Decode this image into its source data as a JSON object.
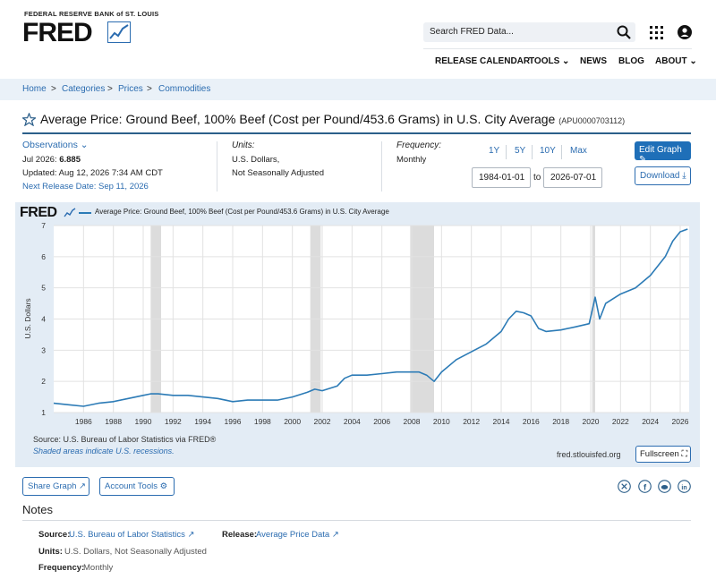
{
  "header": {
    "bank": "FEDERAL RESERVE BANK of ST. LOUIS",
    "logo": "FRED",
    "search_placeholder": "Search FRED Data...",
    "nav": [
      "RELEASE CALENDAR",
      "TOOLS",
      "NEWS",
      "BLOG",
      "ABOUT"
    ]
  },
  "breadcrumb": [
    "Home",
    "Categories",
    "Prices",
    "Commodities"
  ],
  "series": {
    "title": "Average Price: Ground Beef, 100% Beef (Cost per Pound/453.6 Grams) in U.S. City Average",
    "id": "(APU0000703112)",
    "observations_label": "Observations",
    "obs_period": "Jul 2026:",
    "obs_value": "6.885",
    "updated": "Updated: Aug 12, 2026 7:34 AM CDT",
    "next_release": "Next Release Date: Sep 11, 2026",
    "units_label": "Units:",
    "units_line1": "U.S. Dollars,",
    "units_line2": "Not Seasonally Adjusted",
    "frequency_label": "Frequency:",
    "frequency": "Monthly"
  },
  "controls": {
    "ranges": [
      "1Y",
      "5Y",
      "10Y",
      "Max"
    ],
    "start_date": "1984-01-01",
    "to": "to",
    "end_date": "2026-07-01",
    "edit_graph": "Edit Graph",
    "download": "Download"
  },
  "chart_panel": {
    "logo": "FRED",
    "legend": "Average Price: Ground Beef, 100% Beef (Cost per Pound/453.6 Grams) in U.S. City Average",
    "source": "Source: U.S. Bureau of Labor Statistics via FRED®",
    "shaded_note": "Shaded areas indicate U.S. recessions.",
    "url": "fred.stlouisfed.org",
    "fullscreen": "Fullscreen"
  },
  "chart_data": {
    "type": "line",
    "ylabel": "U.S. Dollars",
    "xlim": [
      1984.0,
      2026.6
    ],
    "ylim": [
      1,
      7
    ],
    "x_ticks": [
      "1986",
      "1988",
      "1990",
      "1992",
      "1994",
      "1996",
      "1998",
      "2000",
      "2002",
      "2004",
      "2006",
      "2008",
      "2010",
      "2012",
      "2014",
      "2016",
      "2018",
      "2020",
      "2022",
      "2024",
      "2026"
    ],
    "y_ticks": [
      "1",
      "2",
      "3",
      "4",
      "5",
      "6",
      "7"
    ],
    "recessions": [
      [
        1990.5,
        1991.2
      ],
      [
        2001.2,
        2001.9
      ],
      [
        2007.9,
        2009.5
      ],
      [
        2020.1,
        2020.3
      ]
    ],
    "grid": true,
    "series": [
      {
        "color": "#2c7bb6",
        "x": [
          1984.0,
          1985.0,
          1986.0,
          1987.0,
          1988.0,
          1989.0,
          1990.0,
          1990.5,
          1991.0,
          1992.0,
          1993.0,
          1994.0,
          1995.0,
          1996.0,
          1997.0,
          1998.0,
          1999.0,
          2000.0,
          2001.0,
          2001.5,
          2002.0,
          2003.0,
          2003.5,
          2004.0,
          2005.0,
          2006.0,
          2007.0,
          2008.0,
          2008.5,
          2009.0,
          2009.5,
          2010.0,
          2011.0,
          2012.0,
          2013.0,
          2014.0,
          2014.5,
          2015.0,
          2015.5,
          2016.0,
          2016.5,
          2017.0,
          2018.0,
          2019.0,
          2019.9,
          2020.3,
          2020.6,
          2021.0,
          2022.0,
          2023.0,
          2024.0,
          2025.0,
          2025.5,
          2026.0,
          2026.5
        ],
        "y": [
          1.3,
          1.25,
          1.2,
          1.3,
          1.35,
          1.45,
          1.55,
          1.6,
          1.6,
          1.55,
          1.55,
          1.5,
          1.45,
          1.35,
          1.4,
          1.4,
          1.4,
          1.5,
          1.65,
          1.75,
          1.7,
          1.85,
          2.1,
          2.2,
          2.2,
          2.25,
          2.3,
          2.3,
          2.3,
          2.2,
          2.0,
          2.3,
          2.7,
          2.95,
          3.2,
          3.6,
          4.0,
          4.25,
          4.2,
          4.1,
          3.7,
          3.6,
          3.65,
          3.75,
          3.85,
          4.7,
          4.0,
          4.5,
          4.8,
          5.0,
          5.4,
          6.0,
          6.5,
          6.8,
          6.885
        ]
      }
    ]
  },
  "buttons": {
    "share_graph": "Share Graph",
    "account_tools": "Account Tools"
  },
  "notes": {
    "title": "Notes",
    "source_label": "Source:",
    "source_value": "U.S. Bureau of Labor Statistics",
    "release_label": "Release:",
    "release_value": "Average Price Data",
    "units_label": "Units:",
    "units_value": "U.S. Dollars, Not Seasonally Adjusted",
    "frequency_label": "Frequency:",
    "frequency_value": "Monthly"
  }
}
